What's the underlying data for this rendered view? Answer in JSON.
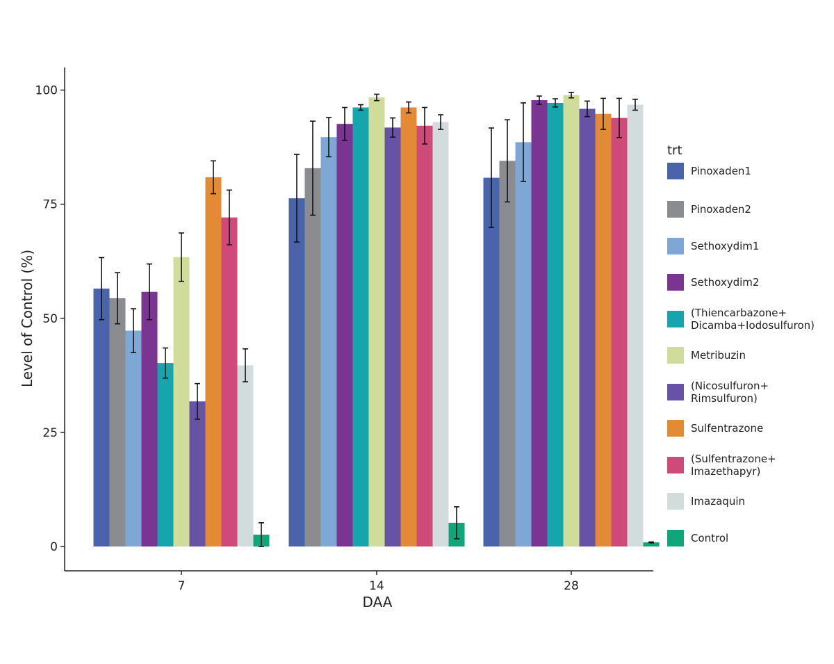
{
  "chart_data": {
    "type": "bar",
    "title": "",
    "xlabel": "DAA",
    "ylabel": "Level of Control (%)",
    "categories": [
      "7",
      "14",
      "28"
    ],
    "ylim": [
      0,
      105
    ],
    "yticks": [
      0,
      25,
      50,
      75,
      100
    ],
    "grid": false,
    "error_bars": true,
    "legend": {
      "title": "trt",
      "position": "right"
    },
    "series": [
      {
        "name": "Pinoxaden1",
        "label_lines": [
          "Pinoxaden1"
        ],
        "color": "#4a64ab",
        "values": [
          56.5,
          76.3,
          80.8
        ],
        "error": [
          6.8,
          9.6,
          10.9
        ]
      },
      {
        "name": "Pinoxaden2",
        "label_lines": [
          "Pinoxaden2"
        ],
        "color": "#8a8c90",
        "values": [
          54.4,
          82.9,
          84.5
        ],
        "error": [
          5.6,
          10.3,
          9.0
        ]
      },
      {
        "name": "Sethoxydim1",
        "label_lines": [
          "Sethoxydim1"
        ],
        "color": "#7fa7d6",
        "values": [
          47.3,
          89.7,
          88.6
        ],
        "error": [
          4.8,
          4.3,
          8.6
        ]
      },
      {
        "name": "Sethoxydim2",
        "label_lines": [
          "Sethoxydim2"
        ],
        "color": "#7a3592",
        "values": [
          55.8,
          92.6,
          97.8
        ],
        "error": [
          6.1,
          3.6,
          0.9
        ]
      },
      {
        "name": "(Thiencarbazone+ Dicamba+Iodosulfuron)",
        "label_lines": [
          "(Thiencarbazone+",
          "Dicamba+Iodosulfuron)"
        ],
        "color": "#17a5ad",
        "values": [
          40.2,
          96.2,
          97.2
        ],
        "error": [
          3.3,
          0.6,
          0.9
        ]
      },
      {
        "name": "Metribuzin",
        "label_lines": [
          "Metribuzin"
        ],
        "color": "#cfdc9a",
        "values": [
          63.4,
          98.4,
          98.9
        ],
        "error": [
          5.3,
          0.7,
          0.6
        ]
      },
      {
        "name": "(Nicosulfuron+ Rimsulfuron)",
        "label_lines": [
          "(Nicosulfuron+",
          "Rimsulfuron)"
        ],
        "color": "#6753a6",
        "values": [
          31.8,
          91.8,
          95.9
        ],
        "error": [
          3.9,
          2.1,
          1.7
        ]
      },
      {
        "name": "Sulfentrazone",
        "label_lines": [
          "Sulfentrazone"
        ],
        "color": "#e28a35",
        "values": [
          80.9,
          96.2,
          94.8
        ],
        "error": [
          3.6,
          1.2,
          3.4
        ]
      },
      {
        "name": "(Sulfentrazone+ Imazethapyr)",
        "label_lines": [
          "(Sulfentrazone+",
          "Imazethapyr)"
        ],
        "color": "#cf4a78",
        "values": [
          72.1,
          92.2,
          93.9
        ],
        "error": [
          6.0,
          4.0,
          4.3
        ]
      },
      {
        "name": "Imazaquin",
        "label_lines": [
          "Imazaquin"
        ],
        "color": "#d3dcdd",
        "values": [
          39.7,
          93.0,
          96.8
        ],
        "error": [
          3.6,
          1.6,
          1.2
        ]
      },
      {
        "name": "Control",
        "label_lines": [
          "Control"
        ],
        "color": "#11a67a",
        "values": [
          2.6,
          5.2,
          0.9
        ],
        "error": [
          2.6,
          3.5,
          0.1
        ]
      }
    ]
  }
}
